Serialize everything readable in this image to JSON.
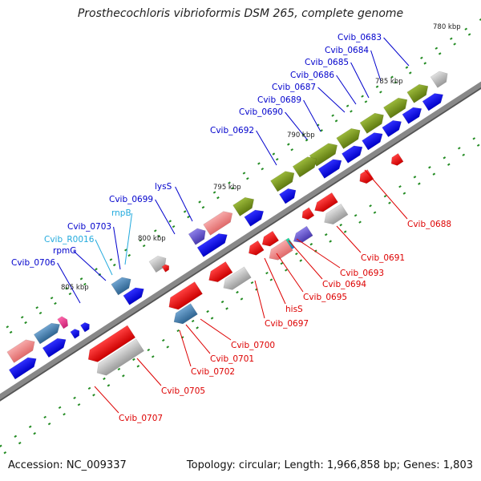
{
  "title": "Prosthecochloris vibrioformis DSM 265, complete genome",
  "footer": {
    "accession": "Accession: NC_009337",
    "topology": "Topology: circular; Length: 1,966,858 bp; Genes: 1,803"
  },
  "scale_labels": [
    "780 kbp",
    "785 kbp",
    "790 kbp",
    "795 kbp",
    "800 kbp",
    "805 kbp"
  ],
  "colors": {
    "backbone": "#888888",
    "cds_blue": "#0000ee",
    "cds_olive": "#7f9a1a",
    "cds_red": "#ee1111",
    "cds_pink": "#f08a8a",
    "cds_gray": "#b8b8b8",
    "cds_purple": "#6a5acd",
    "cds_steel": "#4682b4",
    "rna_cyan": "#22aadd",
    "label_blue": "#0000cc",
    "label_red": "#dd0000",
    "label_cyan": "#22aadd",
    "tick_green": "#228b22"
  },
  "labels_top": [
    {
      "text": "Cvib_0683",
      "color": "label_blue"
    },
    {
      "text": "Cvib_0684",
      "color": "label_blue"
    },
    {
      "text": "Cvib_0685",
      "color": "label_blue"
    },
    {
      "text": "Cvib_0686",
      "color": "label_blue"
    },
    {
      "text": "Cvib_0687",
      "color": "label_blue"
    },
    {
      "text": "Cvib_0689",
      "color": "label_blue"
    },
    {
      "text": "Cvib_0690",
      "color": "label_blue"
    },
    {
      "text": "Cvib_0692",
      "color": "label_blue"
    },
    {
      "text": "lysS",
      "color": "label_blue"
    },
    {
      "text": "Cvib_0699",
      "color": "label_blue"
    },
    {
      "text": "rnpB",
      "color": "label_cyan"
    },
    {
      "text": "Cvib_0703",
      "color": "label_blue"
    },
    {
      "text": "Cvib_R0016",
      "color": "label_cyan"
    },
    {
      "text": "rpmG",
      "color": "label_blue"
    },
    {
      "text": "Cvib_0706",
      "color": "label_blue"
    }
  ],
  "labels_bottom": [
    {
      "text": "Cvib_0688",
      "color": "label_red"
    },
    {
      "text": "Cvib_0691",
      "color": "label_red"
    },
    {
      "text": "Cvib_0693",
      "color": "label_red"
    },
    {
      "text": "Cvib_0694",
      "color": "label_red"
    },
    {
      "text": "Cvib_0695",
      "color": "label_red"
    },
    {
      "text": "hisS",
      "color": "label_red"
    },
    {
      "text": "Cvib_0697",
      "color": "label_red"
    },
    {
      "text": "Cvib_0700",
      "color": "label_red"
    },
    {
      "text": "Cvib_0701",
      "color": "label_red"
    },
    {
      "text": "Cvib_0702",
      "color": "label_red"
    },
    {
      "text": "Cvib_0705",
      "color": "label_red"
    },
    {
      "text": "Cvib_0707",
      "color": "label_red"
    }
  ]
}
